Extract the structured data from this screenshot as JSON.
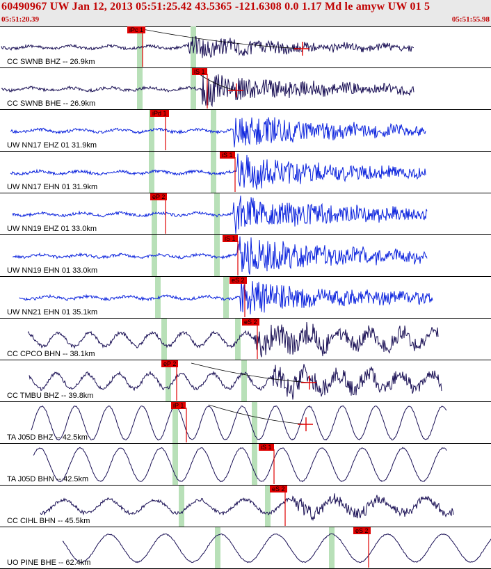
{
  "header": {
    "title": "60490967 UW Jan 12, 2013 05:51:25.42   43.5365 -121.6308  0.0 1.17 Md le amyw UW 01   5",
    "time_start": "05:51:20.39",
    "time_end": "05:51:55.98"
  },
  "colors": {
    "header_text": "#c00000",
    "pick": "#e00000",
    "window": "#b8e0b8",
    "trace_cc": "#1a1055",
    "trace_uw": "#0a22dd"
  },
  "traces": [
    {
      "label": "CC SWNB BHZ -- 26.9km",
      "pick": "iPc 1",
      "color": "#1a1055",
      "type": "hf"
    },
    {
      "label": "CC SWNB BHE -- 26.9km",
      "pick": "iS 1",
      "color": "#1a1055",
      "type": "hf"
    },
    {
      "label": "UW NN17 EHZ 01 31.9km",
      "pick": "iPd 1",
      "color": "#0a22dd",
      "type": "hf"
    },
    {
      "label": "UW NN17 EHN 01 31.9km",
      "pick": "iS 1",
      "color": "#0a22dd",
      "type": "hf"
    },
    {
      "label": "UW NN19 EHZ 01 33.0km",
      "pick": "eP 2",
      "color": "#0a22dd",
      "type": "hf"
    },
    {
      "label": "UW NN19 EHN 01 33.0km",
      "pick": "iS 1",
      "color": "#0a22dd",
      "type": "hf"
    },
    {
      "label": "UW NN21 EHN 01 35.1km",
      "pick": "eS 2",
      "color": "#0a22dd",
      "type": "hf"
    },
    {
      "label": "CC CPCO BHN -- 38.1km",
      "pick": "eS 2",
      "color": "#1a1055",
      "type": "mix"
    },
    {
      "label": "CC TMBU BHZ -- 39.8km",
      "pick": "eP 2",
      "color": "#1a1055",
      "type": "mix"
    },
    {
      "label": "TA J05D BHZ -- 42.5km",
      "pick": "iP 1",
      "color": "#1a1055",
      "type": "lf"
    },
    {
      "label": "TA J05D BHN -- 42.5km",
      "pick": "iS 1",
      "color": "#1a1055",
      "type": "lf"
    },
    {
      "label": "CC CIHL BHN -- 45.5km",
      "pick": "eS 2",
      "color": "#1a1055",
      "type": "mix"
    },
    {
      "label": "UO PINE BHE -- 62.4km",
      "pick": "eS 2",
      "color": "#1a1055",
      "type": "lf"
    }
  ]
}
